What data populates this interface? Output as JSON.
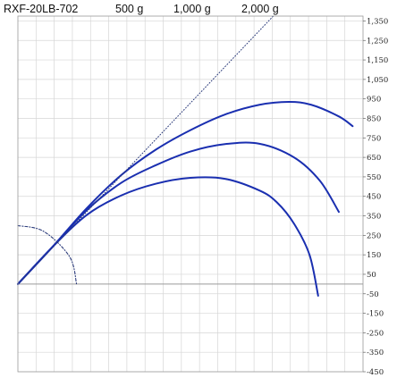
{
  "header": {
    "model": "RXF-20LB-702",
    "loads": [
      "500 g",
      "1,000 g",
      "2,000 g"
    ]
  },
  "colors": {
    "curve": "#1a2fb0",
    "grid": "#d6d6d6",
    "border": "#9a9a9a",
    "guide": "#2a3a7a"
  },
  "chart_data": {
    "type": "line",
    "title": "",
    "xlabel": "",
    "ylabel": "",
    "xlim": [
      0,
      20
    ],
    "ylim": [
      -450,
      1375
    ],
    "yticks": [
      1350,
      1250,
      1150,
      1050,
      950,
      850,
      750,
      650,
      550,
      450,
      350,
      250,
      150,
      50,
      -50,
      -150,
      -250,
      -350,
      -450
    ],
    "ytick_labels": [
      "1,350",
      "1,250",
      "1,150",
      "1,050",
      "950",
      "850",
      "750",
      "650",
      "550",
      "450",
      "350",
      "250",
      "150",
      "50",
      "-50",
      "-150",
      "-250",
      "-350",
      "-450"
    ],
    "grid": true,
    "x_grid_lines": 19,
    "series": [
      {
        "style": "solid",
        "x": [
          0,
          2,
          4,
          6,
          8,
          10,
          12,
          14,
          15,
          16,
          16.9,
          17.4
        ],
        "y": [
          0,
          190,
          355,
          455,
          515,
          545,
          540,
          480,
          420,
          310,
          150,
          -60
        ]
      },
      {
        "style": "solid",
        "x": [
          0,
          2,
          4,
          6,
          8,
          10,
          12,
          14,
          16,
          17.5,
          18.6
        ],
        "y": [
          0,
          190,
          380,
          520,
          610,
          680,
          718,
          720,
          650,
          530,
          370
        ]
      },
      {
        "style": "solid",
        "x": [
          0,
          2,
          4,
          6,
          8,
          10,
          12,
          14,
          15.7,
          17,
          18.6,
          19.4
        ],
        "y": [
          0,
          190,
          390,
          560,
          690,
          790,
          870,
          920,
          935,
          920,
          860,
          810
        ]
      },
      {
        "style": "dotted",
        "x": [
          0,
          14.8
        ],
        "y": [
          0,
          1375
        ]
      },
      {
        "style": "dash-dot",
        "x": [
          0,
          1.5,
          3,
          3.4
        ],
        "y": [
          300,
          270,
          140,
          0
        ]
      }
    ]
  }
}
